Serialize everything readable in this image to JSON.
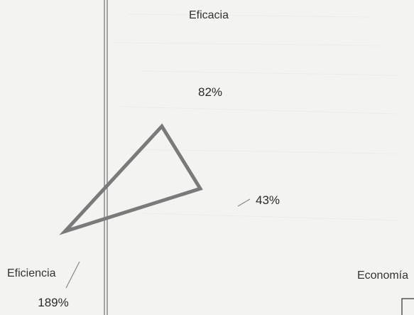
{
  "chart_data": {
    "type": "radar",
    "title": "",
    "axes": [
      "Eficacia",
      "Economía",
      "Eficiencia"
    ],
    "series": [
      {
        "values": [
          82,
          43,
          189
        ],
        "labels": [
          "82%",
          "43%",
          "189%"
        ]
      }
    ],
    "colors": {
      "series": "#7a7a7a",
      "page": "#f3f3f1",
      "guide": "#8a8a8a"
    }
  }
}
